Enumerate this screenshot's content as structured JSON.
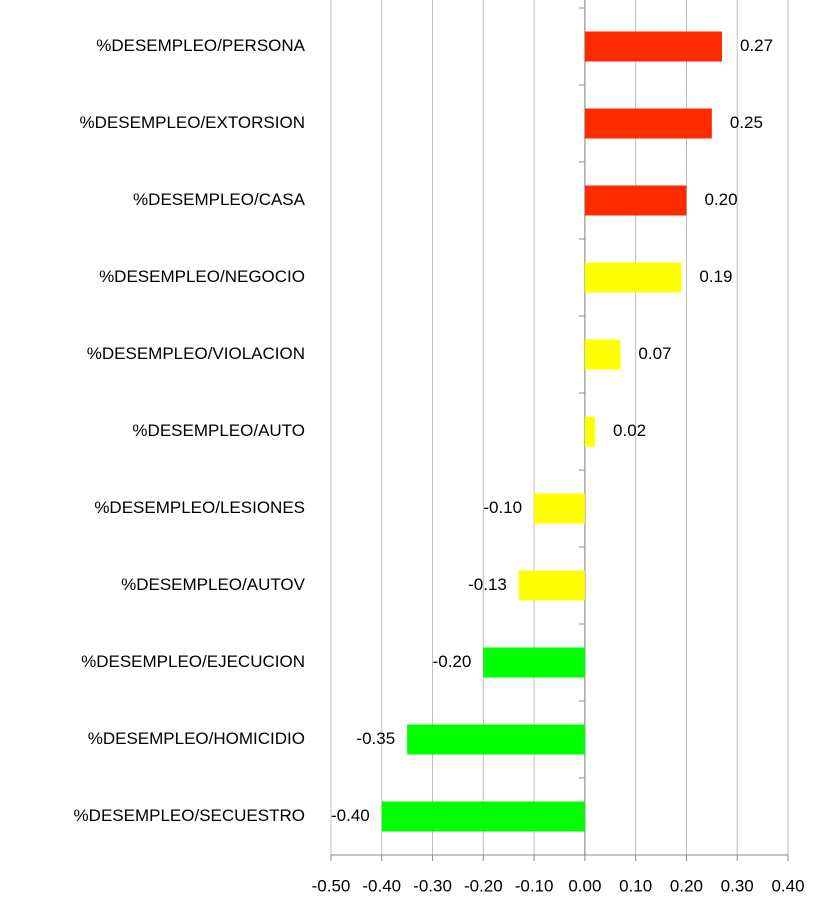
{
  "chart_data": {
    "type": "barh",
    "categories": [
      "%DESEMPLEO/PERSONA",
      "%DESEMPLEO/EXTORSION",
      "%DESEMPLEO/CASA",
      "%DESEMPLEO/NEGOCIO",
      "%DESEMPLEO/VIOLACION",
      "%DESEMPLEO/AUTO",
      "%DESEMPLEO/LESIONES",
      "%DESEMPLEO/AUTOV",
      "%DESEMPLEO/EJECUCION",
      "%DESEMPLEO/HOMICIDIO",
      "%DESEMPLEO/SECUESTRO"
    ],
    "values": [
      0.27,
      0.25,
      0.2,
      0.19,
      0.07,
      0.02,
      -0.1,
      -0.13,
      -0.2,
      -0.35,
      -0.4
    ],
    "value_labels": [
      "0.27",
      "0.25",
      "0.20",
      "0.19",
      "0.07",
      "0.02",
      "-0.10",
      "-0.13",
      "-0.20",
      "-0.35",
      "-0.40"
    ],
    "colors": [
      "#ff2a00",
      "#ff2a00",
      "#ff2a00",
      "#ffff00",
      "#ffff00",
      "#ffff00",
      "#ffff00",
      "#ffff00",
      "#00ff00",
      "#00ff00",
      "#00ff00"
    ],
    "xlim": [
      -0.5,
      0.4
    ],
    "xticks": [
      {
        "value": -0.5,
        "label": "-0.50"
      },
      {
        "value": -0.4,
        "label": "-0.40"
      },
      {
        "value": -0.3,
        "label": "-0.30"
      },
      {
        "value": -0.2,
        "label": "-0.20"
      },
      {
        "value": -0.1,
        "label": "-0.10"
      },
      {
        "value": 0,
        "label": "0.00"
      },
      {
        "value": 0.1,
        "label": "0.10"
      },
      {
        "value": 0.2,
        "label": "0.20"
      },
      {
        "value": 0.3,
        "label": "0.30"
      },
      {
        "value": 0.4,
        "label": "0.40"
      }
    ],
    "grid": true
  }
}
